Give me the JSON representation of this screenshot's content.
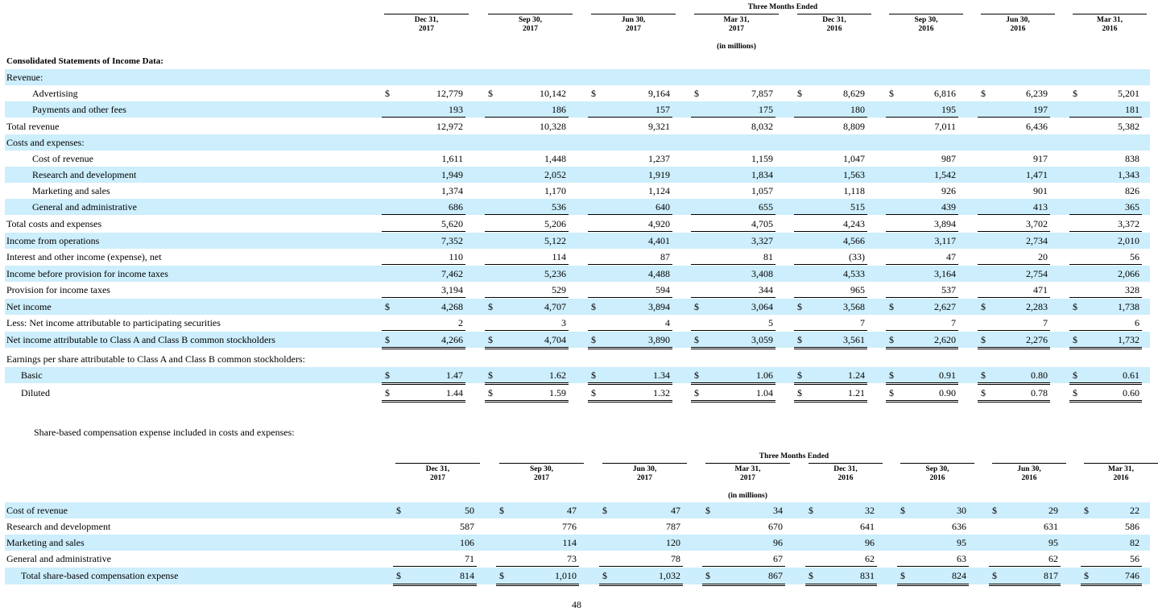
{
  "table1": {
    "super_header": "Three Months Ended",
    "unit_note": "(in millions)",
    "periods": [
      {
        "line1": "Dec 31,",
        "line2": "2017"
      },
      {
        "line1": "Sep 30,",
        "line2": "2017"
      },
      {
        "line1": "Jun 30,",
        "line2": "2017"
      },
      {
        "line1": "Mar 31,",
        "line2": "2017"
      },
      {
        "line1": "Dec 31,",
        "line2": "2016"
      },
      {
        "line1": "Sep 30,",
        "line2": "2016"
      },
      {
        "line1": "Jun 30,",
        "line2": "2016"
      },
      {
        "line1": "Mar 31,",
        "line2": "2016"
      }
    ],
    "section_title": "Consolidated Statements of Income Data:",
    "currency_symbol": "$",
    "rows": [
      {
        "label": "Revenue:",
        "indent": 0,
        "shaded": true,
        "values": null
      },
      {
        "label": "Advertising",
        "indent": 2,
        "shaded": false,
        "dollar": true,
        "values": [
          "12,779",
          "10,142",
          "9,164",
          "7,857",
          "8,629",
          "6,816",
          "6,239",
          "5,201"
        ]
      },
      {
        "label": "Payments and other fees",
        "indent": 2,
        "shaded": true,
        "values": [
          "193",
          "186",
          "157",
          "175",
          "180",
          "195",
          "197",
          "181"
        ],
        "rule": "single"
      },
      {
        "label": "Total revenue",
        "indent": 0,
        "shaded": false,
        "values": [
          "12,972",
          "10,328",
          "9,321",
          "8,032",
          "8,809",
          "7,011",
          "6,436",
          "5,382"
        ]
      },
      {
        "label": "Costs and expenses:",
        "indent": 0,
        "shaded": true,
        "values": null
      },
      {
        "label": "Cost of revenue",
        "indent": 2,
        "shaded": false,
        "values": [
          "1,611",
          "1,448",
          "1,237",
          "1,159",
          "1,047",
          "987",
          "917",
          "838"
        ]
      },
      {
        "label": "Research and development",
        "indent": 2,
        "shaded": true,
        "values": [
          "1,949",
          "2,052",
          "1,919",
          "1,834",
          "1,563",
          "1,542",
          "1,471",
          "1,343"
        ]
      },
      {
        "label": "Marketing and sales",
        "indent": 2,
        "shaded": false,
        "values": [
          "1,374",
          "1,170",
          "1,124",
          "1,057",
          "1,118",
          "926",
          "901",
          "826"
        ]
      },
      {
        "label": "General and administrative",
        "indent": 2,
        "shaded": true,
        "values": [
          "686",
          "536",
          "640",
          "655",
          "515",
          "439",
          "413",
          "365"
        ],
        "rule": "single"
      },
      {
        "label": "Total costs and expenses",
        "indent": 0,
        "shaded": false,
        "values": [
          "5,620",
          "5,206",
          "4,920",
          "4,705",
          "4,243",
          "3,894",
          "3,702",
          "3,372"
        ],
        "rule": "single"
      },
      {
        "label": "Income from operations",
        "indent": 0,
        "shaded": true,
        "values": [
          "7,352",
          "5,122",
          "4,401",
          "3,327",
          "4,566",
          "3,117",
          "2,734",
          "2,010"
        ]
      },
      {
        "label": "Interest and other income (expense), net",
        "indent": 0,
        "shaded": false,
        "values": [
          "110",
          "114",
          "87",
          "81",
          "(33)",
          "47",
          "20",
          "56"
        ],
        "rule": "single"
      },
      {
        "label": "Income before provision for income taxes",
        "indent": 0,
        "shaded": true,
        "values": [
          "7,462",
          "5,236",
          "4,488",
          "3,408",
          "4,533",
          "3,164",
          "2,754",
          "2,066"
        ]
      },
      {
        "label": "Provision for income taxes",
        "indent": 0,
        "shaded": false,
        "values": [
          "3,194",
          "529",
          "594",
          "344",
          "965",
          "537",
          "471",
          "328"
        ],
        "rule": "single"
      },
      {
        "label": "Net income",
        "indent": 0,
        "shaded": true,
        "dollar": true,
        "values": [
          "4,268",
          "4,707",
          "3,894",
          "3,064",
          "3,568",
          "2,627",
          "2,283",
          "1,738"
        ]
      },
      {
        "label": "Less: Net income attributable to participating securities",
        "indent": 0,
        "shaded": false,
        "values": [
          "2",
          "3",
          "4",
          "5",
          "7",
          "7",
          "7",
          "6"
        ],
        "rule": "single"
      },
      {
        "label": "Net income attributable to Class A and Class B common stockholders",
        "indent": 0,
        "shaded": true,
        "dollar": true,
        "values": [
          "4,266",
          "4,704",
          "3,890",
          "3,059",
          "3,561",
          "2,620",
          "2,276",
          "1,732"
        ],
        "rule": "double"
      },
      {
        "label": "Earnings per share attributable to Class A and Class B common stockholders:",
        "indent": 0,
        "shaded": false,
        "values": null
      },
      {
        "label": "Basic",
        "indent": 1,
        "shaded": true,
        "dollar": true,
        "values": [
          "1.47",
          "1.62",
          "1.34",
          "1.06",
          "1.24",
          "0.91",
          "0.80",
          "0.61"
        ],
        "rule": "double"
      },
      {
        "label": "Diluted",
        "indent": 1,
        "shaded": false,
        "dollar": true,
        "values": [
          "1.44",
          "1.59",
          "1.32",
          "1.04",
          "1.21",
          "0.90",
          "0.78",
          "0.60"
        ],
        "rule": "double"
      }
    ]
  },
  "sbc_heading": "Share-based compensation expense included in costs and expenses:",
  "table2": {
    "super_header": "Three Months Ended",
    "unit_note": "(in millions)",
    "periods": [
      {
        "line1": "Dec 31,",
        "line2": "2017"
      },
      {
        "line1": "Sep 30,",
        "line2": "2017"
      },
      {
        "line1": "Jun 30,",
        "line2": "2017"
      },
      {
        "line1": "Mar 31,",
        "line2": "2017"
      },
      {
        "line1": "Dec 31,",
        "line2": "2016"
      },
      {
        "line1": "Sep 30,",
        "line2": "2016"
      },
      {
        "line1": "Jun 30,",
        "line2": "2016"
      },
      {
        "line1": "Mar 31,",
        "line2": "2016"
      }
    ],
    "currency_symbol": "$",
    "rows": [
      {
        "label": "Cost of revenue",
        "indent": 0,
        "shaded": true,
        "dollar": true,
        "values": [
          "50",
          "47",
          "47",
          "34",
          "32",
          "30",
          "29",
          "22"
        ]
      },
      {
        "label": "Research and development",
        "indent": 0,
        "shaded": false,
        "values": [
          "587",
          "776",
          "787",
          "670",
          "641",
          "636",
          "631",
          "586"
        ]
      },
      {
        "label": "Marketing and sales",
        "indent": 0,
        "shaded": true,
        "values": [
          "106",
          "114",
          "120",
          "96",
          "96",
          "95",
          "95",
          "82"
        ]
      },
      {
        "label": "General and administrative",
        "indent": 0,
        "shaded": false,
        "values": [
          "71",
          "73",
          "78",
          "67",
          "62",
          "63",
          "62",
          "56"
        ],
        "rule": "single"
      },
      {
        "label": "Total share-based compensation expense",
        "indent": 1,
        "shaded": true,
        "dollar": true,
        "values": [
          "814",
          "1,010",
          "1,032",
          "867",
          "831",
          "824",
          "817",
          "746"
        ],
        "rule": "double"
      }
    ]
  },
  "page_number": "48"
}
